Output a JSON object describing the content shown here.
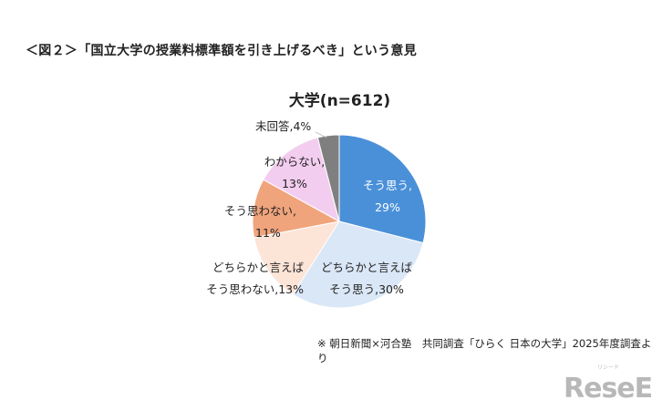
{
  "title": "＜図２＞「国立大学の授業料標準額を引き上げるべき」という意見",
  "source": "※ 朝日新聞×河合塾　共同調査「ひらく 日本の大学」2025年度調査より",
  "logo": {
    "text": "ReseEd",
    "ruby": "リシード"
  },
  "chart_data": {
    "type": "pie",
    "title": "大学(n=612)",
    "start": "top",
    "direction": "clockwise",
    "slices": [
      {
        "label_line1": "そう思う,",
        "label_line2": "29%",
        "value": 29,
        "color": "#4a90d9"
      },
      {
        "label_line1": "どちらかと言えば",
        "label_line2": "そう思う,30%",
        "value": 30,
        "color": "#dae7f6"
      },
      {
        "label_line1": "どちらかと言えば",
        "label_line2": "そう思わない,13%",
        "value": 13,
        "color": "#fce4d7"
      },
      {
        "label_line1": "そう思わない,",
        "label_line2": "11%",
        "value": 11,
        "color": "#f0a47c"
      },
      {
        "label_line1": "わからない,",
        "label_line2": "13%",
        "value": 13,
        "color": "#f3cdef"
      },
      {
        "label_line1": "未回答,4%",
        "label_line2": "",
        "value": 4,
        "color": "#7f7f7f"
      }
    ]
  }
}
